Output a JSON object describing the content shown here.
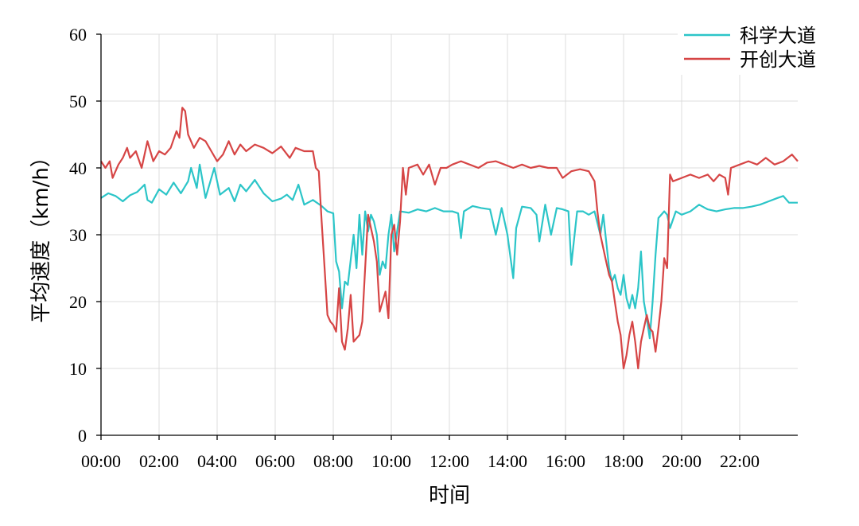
{
  "chart_data": {
    "type": "line",
    "title": "",
    "xlabel": "时间",
    "ylabel": "平均速度（km/h）",
    "x_unit": "hour",
    "xlim": [
      0,
      24
    ],
    "ylim": [
      0,
      60
    ],
    "yticks": [
      0,
      10,
      20,
      30,
      40,
      50,
      60
    ],
    "xtick_values": [
      0,
      2,
      4,
      6,
      8,
      10,
      12,
      14,
      16,
      18,
      20,
      22
    ],
    "xtick_labels": [
      "00:00",
      "02:00",
      "04:00",
      "06:00",
      "08:00",
      "10:00",
      "12:00",
      "14:00",
      "16:00",
      "18:00",
      "20:00",
      "22:00"
    ],
    "grid": true,
    "legend_position": "top-right",
    "series": [
      {
        "name": "科学大道",
        "color": "#2cc5c8",
        "points": [
          [
            0,
            35.5
          ],
          [
            0.25,
            36.2
          ],
          [
            0.5,
            35.8
          ],
          [
            0.75,
            35.0
          ],
          [
            1.0,
            35.9
          ],
          [
            1.25,
            36.4
          ],
          [
            1.5,
            37.5
          ],
          [
            1.6,
            35.2
          ],
          [
            1.75,
            34.8
          ],
          [
            2.0,
            36.8
          ],
          [
            2.25,
            36.0
          ],
          [
            2.5,
            37.8
          ],
          [
            2.75,
            36.2
          ],
          [
            3.0,
            38.0
          ],
          [
            3.1,
            40.0
          ],
          [
            3.3,
            37.0
          ],
          [
            3.4,
            40.5
          ],
          [
            3.6,
            35.5
          ],
          [
            3.9,
            40.0
          ],
          [
            4.1,
            36.0
          ],
          [
            4.4,
            37.0
          ],
          [
            4.6,
            35.0
          ],
          [
            4.8,
            37.5
          ],
          [
            5.0,
            36.5
          ],
          [
            5.3,
            38.2
          ],
          [
            5.6,
            36.2
          ],
          [
            5.9,
            35.0
          ],
          [
            6.2,
            35.4
          ],
          [
            6.4,
            36.0
          ],
          [
            6.6,
            35.2
          ],
          [
            6.8,
            37.5
          ],
          [
            7.0,
            34.5
          ],
          [
            7.3,
            35.2
          ],
          [
            7.6,
            34.3
          ],
          [
            7.8,
            33.5
          ],
          [
            8.0,
            33.2
          ],
          [
            8.1,
            26.0
          ],
          [
            8.2,
            24.5
          ],
          [
            8.3,
            19.0
          ],
          [
            8.4,
            23.0
          ],
          [
            8.5,
            22.5
          ],
          [
            8.7,
            30.0
          ],
          [
            8.8,
            25.0
          ],
          [
            8.9,
            33.0
          ],
          [
            9.0,
            27.0
          ],
          [
            9.1,
            33.5
          ],
          [
            9.2,
            30.5
          ],
          [
            9.3,
            33.0
          ],
          [
            9.4,
            32.0
          ],
          [
            9.5,
            30.0
          ],
          [
            9.6,
            24.0
          ],
          [
            9.7,
            26.0
          ],
          [
            9.8,
            25.0
          ],
          [
            9.9,
            30.0
          ],
          [
            10.0,
            33.0
          ],
          [
            10.1,
            27.5
          ],
          [
            10.3,
            33.5
          ],
          [
            10.6,
            33.3
          ],
          [
            10.9,
            33.8
          ],
          [
            11.2,
            33.5
          ],
          [
            11.5,
            34.0
          ],
          [
            11.8,
            33.5
          ],
          [
            12.1,
            33.5
          ],
          [
            12.3,
            33.2
          ],
          [
            12.4,
            29.5
          ],
          [
            12.5,
            33.5
          ],
          [
            12.8,
            34.3
          ],
          [
            13.1,
            34.0
          ],
          [
            13.4,
            33.8
          ],
          [
            13.6,
            30.0
          ],
          [
            13.8,
            34.0
          ],
          [
            14.0,
            30.0
          ],
          [
            14.2,
            23.5
          ],
          [
            14.3,
            31.0
          ],
          [
            14.5,
            34.2
          ],
          [
            14.8,
            34.0
          ],
          [
            15.0,
            33.0
          ],
          [
            15.1,
            29.0
          ],
          [
            15.3,
            34.5
          ],
          [
            15.5,
            30.0
          ],
          [
            15.7,
            34.0
          ],
          [
            15.9,
            33.8
          ],
          [
            16.1,
            33.5
          ],
          [
            16.2,
            25.5
          ],
          [
            16.4,
            33.5
          ],
          [
            16.6,
            33.5
          ],
          [
            16.8,
            33.0
          ],
          [
            17.0,
            33.5
          ],
          [
            17.2,
            30.0
          ],
          [
            17.3,
            33.0
          ],
          [
            17.5,
            25.0
          ],
          [
            17.6,
            23.0
          ],
          [
            17.7,
            24.0
          ],
          [
            17.8,
            22.0
          ],
          [
            17.9,
            21.0
          ],
          [
            18.0,
            24.0
          ],
          [
            18.1,
            20.5
          ],
          [
            18.2,
            19.0
          ],
          [
            18.3,
            21.0
          ],
          [
            18.4,
            19.0
          ],
          [
            18.5,
            22.0
          ],
          [
            18.6,
            27.5
          ],
          [
            18.7,
            20.0
          ],
          [
            18.8,
            17.5
          ],
          [
            18.9,
            14.5
          ],
          [
            19.0,
            20.0
          ],
          [
            19.1,
            27.0
          ],
          [
            19.2,
            32.5
          ],
          [
            19.4,
            33.5
          ],
          [
            19.5,
            33.0
          ],
          [
            19.6,
            31.0
          ],
          [
            19.8,
            33.5
          ],
          [
            20.0,
            33.0
          ],
          [
            20.3,
            33.5
          ],
          [
            20.6,
            34.5
          ],
          [
            20.9,
            33.8
          ],
          [
            21.2,
            33.5
          ],
          [
            21.5,
            33.8
          ],
          [
            21.8,
            34.0
          ],
          [
            22.1,
            34.0
          ],
          [
            22.4,
            34.2
          ],
          [
            22.7,
            34.5
          ],
          [
            23.0,
            35.0
          ],
          [
            23.3,
            35.5
          ],
          [
            23.5,
            35.8
          ],
          [
            23.7,
            34.8
          ],
          [
            24.0,
            34.8
          ]
        ]
      },
      {
        "name": "开创大道",
        "color": "#d64545",
        "points": [
          [
            0,
            41.0
          ],
          [
            0.15,
            40.0
          ],
          [
            0.3,
            41.0
          ],
          [
            0.4,
            38.5
          ],
          [
            0.6,
            40.5
          ],
          [
            0.75,
            41.5
          ],
          [
            0.9,
            43.0
          ],
          [
            1.0,
            41.5
          ],
          [
            1.2,
            42.5
          ],
          [
            1.4,
            40.0
          ],
          [
            1.6,
            44.0
          ],
          [
            1.8,
            41.0
          ],
          [
            2.0,
            42.5
          ],
          [
            2.2,
            42.0
          ],
          [
            2.4,
            43.0
          ],
          [
            2.6,
            45.5
          ],
          [
            2.7,
            44.5
          ],
          [
            2.8,
            49.0
          ],
          [
            2.9,
            48.5
          ],
          [
            3.0,
            45.0
          ],
          [
            3.2,
            43.0
          ],
          [
            3.4,
            44.5
          ],
          [
            3.6,
            44.0
          ],
          [
            3.8,
            42.5
          ],
          [
            4.0,
            41.0
          ],
          [
            4.2,
            42.0
          ],
          [
            4.4,
            44.0
          ],
          [
            4.6,
            42.0
          ],
          [
            4.8,
            43.5
          ],
          [
            5.0,
            42.5
          ],
          [
            5.3,
            43.5
          ],
          [
            5.6,
            43.0
          ],
          [
            5.9,
            42.2
          ],
          [
            6.2,
            43.2
          ],
          [
            6.5,
            41.5
          ],
          [
            6.7,
            43.0
          ],
          [
            7.0,
            42.5
          ],
          [
            7.3,
            42.5
          ],
          [
            7.4,
            40.0
          ],
          [
            7.5,
            39.5
          ],
          [
            7.6,
            32.0
          ],
          [
            7.7,
            25.0
          ],
          [
            7.8,
            18.0
          ],
          [
            7.9,
            17.0
          ],
          [
            8.0,
            16.5
          ],
          [
            8.1,
            15.5
          ],
          [
            8.2,
            22.0
          ],
          [
            8.3,
            14.0
          ],
          [
            8.4,
            12.8
          ],
          [
            8.5,
            16.0
          ],
          [
            8.6,
            21.0
          ],
          [
            8.7,
            14.0
          ],
          [
            8.8,
            14.5
          ],
          [
            8.9,
            15.0
          ],
          [
            9.0,
            17.0
          ],
          [
            9.1,
            25.0
          ],
          [
            9.2,
            33.0
          ],
          [
            9.3,
            31.0
          ],
          [
            9.4,
            29.0
          ],
          [
            9.5,
            26.0
          ],
          [
            9.6,
            18.5
          ],
          [
            9.7,
            20.0
          ],
          [
            9.8,
            21.5
          ],
          [
            9.9,
            17.5
          ],
          [
            10.0,
            30.0
          ],
          [
            10.1,
            31.5
          ],
          [
            10.2,
            27.0
          ],
          [
            10.3,
            32.0
          ],
          [
            10.4,
            40.0
          ],
          [
            10.5,
            36.0
          ],
          [
            10.6,
            40.0
          ],
          [
            10.9,
            40.5
          ],
          [
            11.1,
            39.0
          ],
          [
            11.3,
            40.5
          ],
          [
            11.5,
            37.5
          ],
          [
            11.7,
            40.0
          ],
          [
            11.9,
            40.0
          ],
          [
            12.1,
            40.5
          ],
          [
            12.4,
            41.0
          ],
          [
            12.7,
            40.5
          ],
          [
            13.0,
            40.0
          ],
          [
            13.3,
            40.8
          ],
          [
            13.6,
            41.0
          ],
          [
            13.9,
            40.5
          ],
          [
            14.2,
            40.0
          ],
          [
            14.5,
            40.5
          ],
          [
            14.8,
            40.0
          ],
          [
            15.1,
            40.3
          ],
          [
            15.4,
            40.0
          ],
          [
            15.7,
            40.0
          ],
          [
            15.9,
            38.5
          ],
          [
            16.2,
            39.5
          ],
          [
            16.5,
            39.8
          ],
          [
            16.8,
            39.5
          ],
          [
            17.0,
            38.0
          ],
          [
            17.1,
            33.5
          ],
          [
            17.2,
            30.0
          ],
          [
            17.4,
            26.0
          ],
          [
            17.5,
            24.0
          ],
          [
            17.6,
            23.0
          ],
          [
            17.7,
            20.0
          ],
          [
            17.8,
            17.0
          ],
          [
            17.9,
            15.0
          ],
          [
            18.0,
            10.0
          ],
          [
            18.1,
            12.0
          ],
          [
            18.2,
            15.0
          ],
          [
            18.3,
            17.0
          ],
          [
            18.4,
            14.0
          ],
          [
            18.5,
            10.0
          ],
          [
            18.6,
            14.0
          ],
          [
            18.7,
            16.0
          ],
          [
            18.8,
            18.0
          ],
          [
            18.9,
            16.0
          ],
          [
            19.0,
            15.5
          ],
          [
            19.1,
            12.5
          ],
          [
            19.2,
            16.0
          ],
          [
            19.3,
            20.0
          ],
          [
            19.4,
            26.5
          ],
          [
            19.5,
            25.0
          ],
          [
            19.6,
            39.0
          ],
          [
            19.7,
            38.0
          ],
          [
            20.0,
            38.5
          ],
          [
            20.3,
            39.0
          ],
          [
            20.6,
            38.5
          ],
          [
            20.9,
            39.0
          ],
          [
            21.1,
            38.0
          ],
          [
            21.3,
            39.0
          ],
          [
            21.5,
            38.5
          ],
          [
            21.6,
            36.0
          ],
          [
            21.7,
            40.0
          ],
          [
            22.0,
            40.5
          ],
          [
            22.3,
            41.0
          ],
          [
            22.6,
            40.5
          ],
          [
            22.9,
            41.5
          ],
          [
            23.2,
            40.5
          ],
          [
            23.5,
            41.0
          ],
          [
            23.8,
            42.0
          ],
          [
            24.0,
            41.0
          ]
        ]
      }
    ]
  }
}
